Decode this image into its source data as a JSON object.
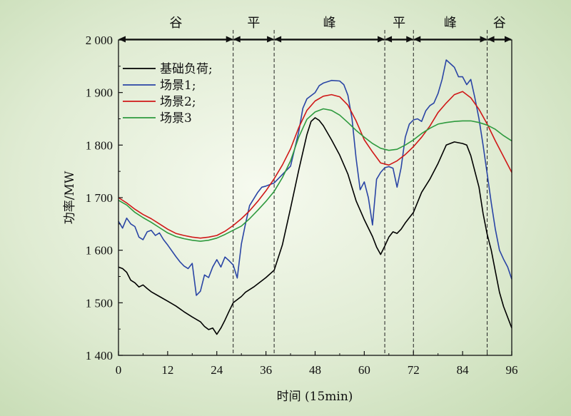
{
  "chart_data": {
    "type": "line",
    "title": "",
    "xlabel": "时间 (15min)",
    "ylabel": "功率/MW",
    "xlim": [
      0,
      96
    ],
    "ylim": [
      1400,
      2000
    ],
    "xticks": [
      0,
      12,
      24,
      36,
      48,
      60,
      72,
      84,
      96
    ],
    "xtick_labels": [
      "0",
      "12",
      "24",
      "36",
      "48",
      "60",
      "72",
      "84",
      "96"
    ],
    "yticks": [
      1400,
      1500,
      1600,
      1700,
      1800,
      1900,
      2000
    ],
    "ytick_labels": [
      "1 400",
      "1 500",
      "1 600",
      "1 700",
      "1 800",
      "1 900",
      "2 000"
    ],
    "grid": false,
    "legend_position": "top-left",
    "periods": [
      {
        "label": "谷",
        "start": 0,
        "end": 28
      },
      {
        "label": "平",
        "start": 28,
        "end": 38
      },
      {
        "label": "峰",
        "start": 38,
        "end": 65
      },
      {
        "label": "平",
        "start": 65,
        "end": 72
      },
      {
        "label": "峰",
        "start": 72,
        "end": 90
      },
      {
        "label": "谷",
        "start": 90,
        "end": 96
      }
    ],
    "series": [
      {
        "name": "基础负荷;",
        "color": "#000000",
        "points": [
          [
            0,
            1568
          ],
          [
            1,
            1565
          ],
          [
            2,
            1558
          ],
          [
            3,
            1543
          ],
          [
            4,
            1538
          ],
          [
            5,
            1530
          ],
          [
            6,
            1534
          ],
          [
            7,
            1527
          ],
          [
            8,
            1521
          ],
          [
            10,
            1512
          ],
          [
            12,
            1503
          ],
          [
            14,
            1494
          ],
          [
            16,
            1483
          ],
          [
            18,
            1473
          ],
          [
            20,
            1464
          ],
          [
            21,
            1455
          ],
          [
            22,
            1449
          ],
          [
            23,
            1452
          ],
          [
            24,
            1440
          ],
          [
            25,
            1452
          ],
          [
            26,
            1467
          ],
          [
            27,
            1484
          ],
          [
            28,
            1500
          ],
          [
            30,
            1512
          ],
          [
            31,
            1520
          ],
          [
            33,
            1530
          ],
          [
            36,
            1548
          ],
          [
            38,
            1562
          ],
          [
            40,
            1610
          ],
          [
            42,
            1680
          ],
          [
            44,
            1752
          ],
          [
            46,
            1820
          ],
          [
            47,
            1845
          ],
          [
            48,
            1852
          ],
          [
            49,
            1847
          ],
          [
            50,
            1837
          ],
          [
            52,
            1810
          ],
          [
            54,
            1781
          ],
          [
            56,
            1745
          ],
          [
            58,
            1694
          ],
          [
            60,
            1658
          ],
          [
            62,
            1626
          ],
          [
            63,
            1606
          ],
          [
            64,
            1592
          ],
          [
            65,
            1608
          ],
          [
            66,
            1625
          ],
          [
            67,
            1635
          ],
          [
            68,
            1632
          ],
          [
            69,
            1640
          ],
          [
            70,
            1652
          ],
          [
            72,
            1672
          ],
          [
            74,
            1710
          ],
          [
            76,
            1735
          ],
          [
            78,
            1765
          ],
          [
            80,
            1800
          ],
          [
            82,
            1806
          ],
          [
            84,
            1803
          ],
          [
            85,
            1800
          ],
          [
            86,
            1780
          ],
          [
            88,
            1720
          ],
          [
            89,
            1670
          ],
          [
            90,
            1630
          ],
          [
            91,
            1600
          ],
          [
            92,
            1560
          ],
          [
            93,
            1520
          ],
          [
            94,
            1493
          ],
          [
            96,
            1452
          ]
        ]
      },
      {
        "name": "场景1;",
        "color": "#2a45a5",
        "points": [
          [
            0,
            1655
          ],
          [
            1,
            1642
          ],
          [
            2,
            1661
          ],
          [
            3,
            1650
          ],
          [
            4,
            1645
          ],
          [
            5,
            1625
          ],
          [
            6,
            1620
          ],
          [
            7,
            1635
          ],
          [
            8,
            1638
          ],
          [
            9,
            1628
          ],
          [
            10,
            1633
          ],
          [
            11,
            1620
          ],
          [
            12,
            1610
          ],
          [
            14,
            1588
          ],
          [
            15,
            1578
          ],
          [
            16,
            1570
          ],
          [
            17,
            1565
          ],
          [
            18,
            1575
          ],
          [
            19,
            1514
          ],
          [
            20,
            1522
          ],
          [
            21,
            1553
          ],
          [
            22,
            1548
          ],
          [
            23,
            1568
          ],
          [
            24,
            1582
          ],
          [
            25,
            1568
          ],
          [
            26,
            1587
          ],
          [
            27,
            1580
          ],
          [
            28,
            1572
          ],
          [
            29,
            1547
          ],
          [
            30,
            1612
          ],
          [
            31,
            1650
          ],
          [
            32,
            1685
          ],
          [
            34,
            1710
          ],
          [
            35,
            1720
          ],
          [
            36,
            1722
          ],
          [
            38,
            1728
          ],
          [
            40,
            1744
          ],
          [
            42,
            1760
          ],
          [
            44,
            1825
          ],
          [
            45,
            1870
          ],
          [
            46,
            1888
          ],
          [
            48,
            1900
          ],
          [
            49,
            1913
          ],
          [
            50,
            1918
          ],
          [
            52,
            1923
          ],
          [
            54,
            1922
          ],
          [
            55,
            1915
          ],
          [
            56,
            1895
          ],
          [
            57,
            1850
          ],
          [
            58,
            1775
          ],
          [
            59,
            1715
          ],
          [
            60,
            1730
          ],
          [
            61,
            1700
          ],
          [
            62,
            1648
          ],
          [
            63,
            1735
          ],
          [
            64,
            1748
          ],
          [
            65,
            1757
          ],
          [
            66,
            1759
          ],
          [
            67,
            1756
          ],
          [
            68,
            1720
          ],
          [
            69,
            1757
          ],
          [
            70,
            1815
          ],
          [
            71,
            1840
          ],
          [
            72,
            1848
          ],
          [
            73,
            1850
          ],
          [
            74,
            1845
          ],
          [
            75,
            1865
          ],
          [
            76,
            1875
          ],
          [
            77,
            1880
          ],
          [
            78,
            1898
          ],
          [
            79,
            1925
          ],
          [
            80,
            1962
          ],
          [
            81,
            1955
          ],
          [
            82,
            1948
          ],
          [
            83,
            1930
          ],
          [
            84,
            1930
          ],
          [
            85,
            1915
          ],
          [
            86,
            1925
          ],
          [
            87,
            1890
          ],
          [
            88,
            1850
          ],
          [
            89,
            1800
          ],
          [
            90,
            1745
          ],
          [
            91,
            1690
          ],
          [
            92,
            1640
          ],
          [
            93,
            1600
          ],
          [
            94,
            1583
          ],
          [
            95,
            1568
          ],
          [
            96,
            1545
          ]
        ]
      },
      {
        "name": "场景2;",
        "color": "#d01818",
        "points": [
          [
            0,
            1700
          ],
          [
            2,
            1690
          ],
          [
            4,
            1678
          ],
          [
            6,
            1668
          ],
          [
            8,
            1660
          ],
          [
            10,
            1650
          ],
          [
            12,
            1640
          ],
          [
            14,
            1632
          ],
          [
            16,
            1628
          ],
          [
            18,
            1625
          ],
          [
            20,
            1623
          ],
          [
            22,
            1625
          ],
          [
            24,
            1628
          ],
          [
            26,
            1636
          ],
          [
            28,
            1647
          ],
          [
            30,
            1660
          ],
          [
            32,
            1675
          ],
          [
            34,
            1693
          ],
          [
            36,
            1713
          ],
          [
            38,
            1736
          ],
          [
            40,
            1762
          ],
          [
            42,
            1793
          ],
          [
            44,
            1833
          ],
          [
            46,
            1866
          ],
          [
            48,
            1884
          ],
          [
            50,
            1893
          ],
          [
            52,
            1896
          ],
          [
            54,
            1892
          ],
          [
            56,
            1876
          ],
          [
            58,
            1846
          ],
          [
            60,
            1810
          ],
          [
            62,
            1787
          ],
          [
            64,
            1766
          ],
          [
            66,
            1762
          ],
          [
            68,
            1770
          ],
          [
            70,
            1782
          ],
          [
            72,
            1797
          ],
          [
            74,
            1815
          ],
          [
            76,
            1836
          ],
          [
            78,
            1862
          ],
          [
            80,
            1880
          ],
          [
            82,
            1896
          ],
          [
            84,
            1902
          ],
          [
            86,
            1890
          ],
          [
            88,
            1868
          ],
          [
            90,
            1840
          ],
          [
            92,
            1808
          ],
          [
            94,
            1778
          ],
          [
            96,
            1748
          ]
        ]
      },
      {
        "name": "场景3",
        "color": "#2e9a3e",
        "points": [
          [
            0,
            1695
          ],
          [
            2,
            1686
          ],
          [
            4,
            1672
          ],
          [
            6,
            1662
          ],
          [
            8,
            1653
          ],
          [
            10,
            1643
          ],
          [
            12,
            1633
          ],
          [
            14,
            1626
          ],
          [
            16,
            1622
          ],
          [
            18,
            1619
          ],
          [
            20,
            1617
          ],
          [
            22,
            1619
          ],
          [
            24,
            1623
          ],
          [
            26,
            1630
          ],
          [
            28,
            1638
          ],
          [
            30,
            1646
          ],
          [
            32,
            1660
          ],
          [
            34,
            1676
          ],
          [
            36,
            1693
          ],
          [
            38,
            1712
          ],
          [
            40,
            1738
          ],
          [
            42,
            1770
          ],
          [
            44,
            1815
          ],
          [
            46,
            1849
          ],
          [
            48,
            1863
          ],
          [
            50,
            1869
          ],
          [
            52,
            1866
          ],
          [
            54,
            1857
          ],
          [
            56,
            1843
          ],
          [
            58,
            1828
          ],
          [
            60,
            1815
          ],
          [
            62,
            1803
          ],
          [
            64,
            1794
          ],
          [
            66,
            1790
          ],
          [
            68,
            1792
          ],
          [
            70,
            1800
          ],
          [
            72,
            1810
          ],
          [
            74,
            1822
          ],
          [
            76,
            1832
          ],
          [
            78,
            1840
          ],
          [
            80,
            1843
          ],
          [
            82,
            1845
          ],
          [
            84,
            1846
          ],
          [
            86,
            1846
          ],
          [
            88,
            1843
          ],
          [
            90,
            1838
          ],
          [
            92,
            1830
          ],
          [
            94,
            1818
          ],
          [
            96,
            1808
          ]
        ]
      }
    ]
  }
}
